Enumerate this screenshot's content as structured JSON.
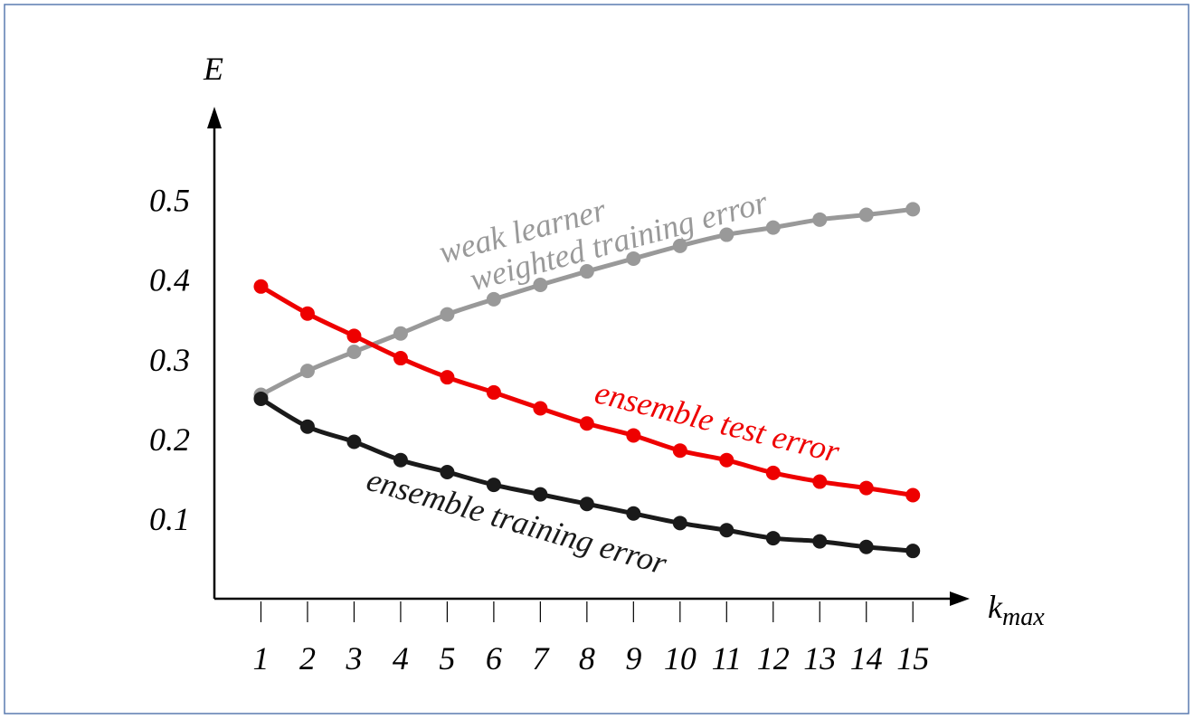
{
  "chart_data": {
    "type": "line",
    "ylabel": "E",
    "xlabel": {
      "text": "k",
      "subscript": "max"
    },
    "x": [
      1,
      2,
      3,
      4,
      5,
      6,
      7,
      8,
      9,
      10,
      11,
      12,
      13,
      14,
      15
    ],
    "xlim": [
      0,
      16.2
    ],
    "xticks": [
      1,
      2,
      3,
      4,
      5,
      6,
      7,
      8,
      9,
      10,
      11,
      12,
      13,
      14,
      15
    ],
    "ylim": [
      0,
      0.62
    ],
    "yticks": [
      0.1,
      0.2,
      0.3,
      0.4,
      0.5
    ],
    "series": [
      {
        "name": [
          "weak learner",
          "weighted training error"
        ],
        "color": "#999999",
        "values": [
          0.256,
          0.286,
          0.31,
          0.333,
          0.357,
          0.376,
          0.394,
          0.411,
          0.427,
          0.443,
          0.457,
          0.466,
          0.476,
          0.482,
          0.489
        ]
      },
      {
        "name": "ensemble test error",
        "color": "#ee0000",
        "values": [
          0.392,
          0.358,
          0.33,
          0.302,
          0.278,
          0.259,
          0.239,
          0.22,
          0.205,
          0.186,
          0.174,
          0.158,
          0.147,
          0.139,
          0.13
        ]
      },
      {
        "name": "ensemble training error",
        "color": "#1a1a1a",
        "values": [
          0.251,
          0.216,
          0.197,
          0.174,
          0.159,
          0.143,
          0.131,
          0.119,
          0.107,
          0.095,
          0.086,
          0.076,
          0.072,
          0.065,
          0.06
        ]
      }
    ]
  }
}
